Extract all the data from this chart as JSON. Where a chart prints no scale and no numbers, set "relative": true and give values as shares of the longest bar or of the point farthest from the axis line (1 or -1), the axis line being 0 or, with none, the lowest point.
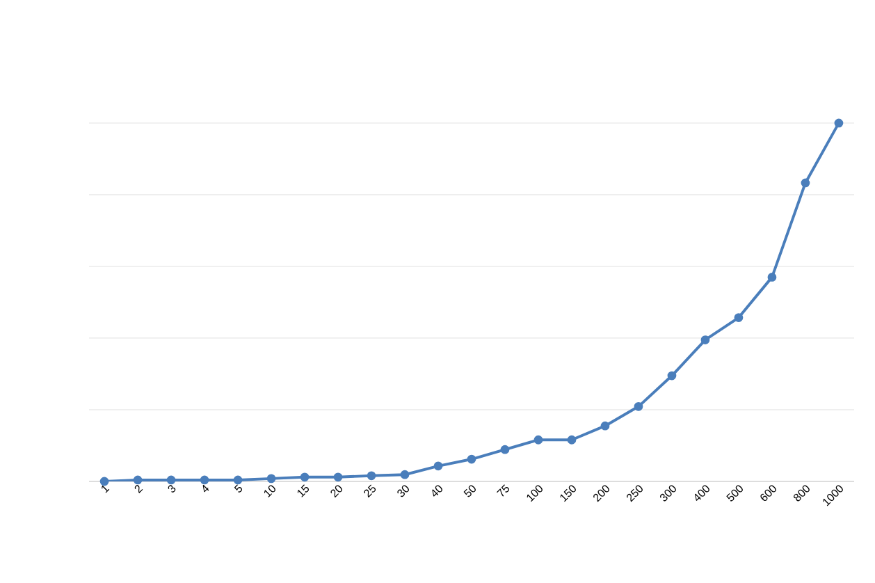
{
  "chart_data": {
    "type": "line",
    "relative": true,
    "grid": "y",
    "marker": "circle",
    "line_style": "solid",
    "categories": [
      "1",
      "2",
      "3",
      "4",
      "5",
      "10",
      "15",
      "20",
      "25",
      "30",
      "40",
      "50",
      "75",
      "100",
      "150",
      "200",
      "250",
      "300",
      "400",
      "500",
      "600",
      "800",
      "1000"
    ],
    "series": [
      {
        "color": "#4a7ebb",
        "values": [
          0,
          0.004,
          0.004,
          0.004,
          0.004,
          0.008,
          0.012,
          0.012,
          0.016,
          0.019,
          0.043,
          0.062,
          0.089,
          0.116,
          0.116,
          0.155,
          0.209,
          0.295,
          0.395,
          0.457,
          0.57,
          0.833,
          1
        ]
      }
    ]
  }
}
